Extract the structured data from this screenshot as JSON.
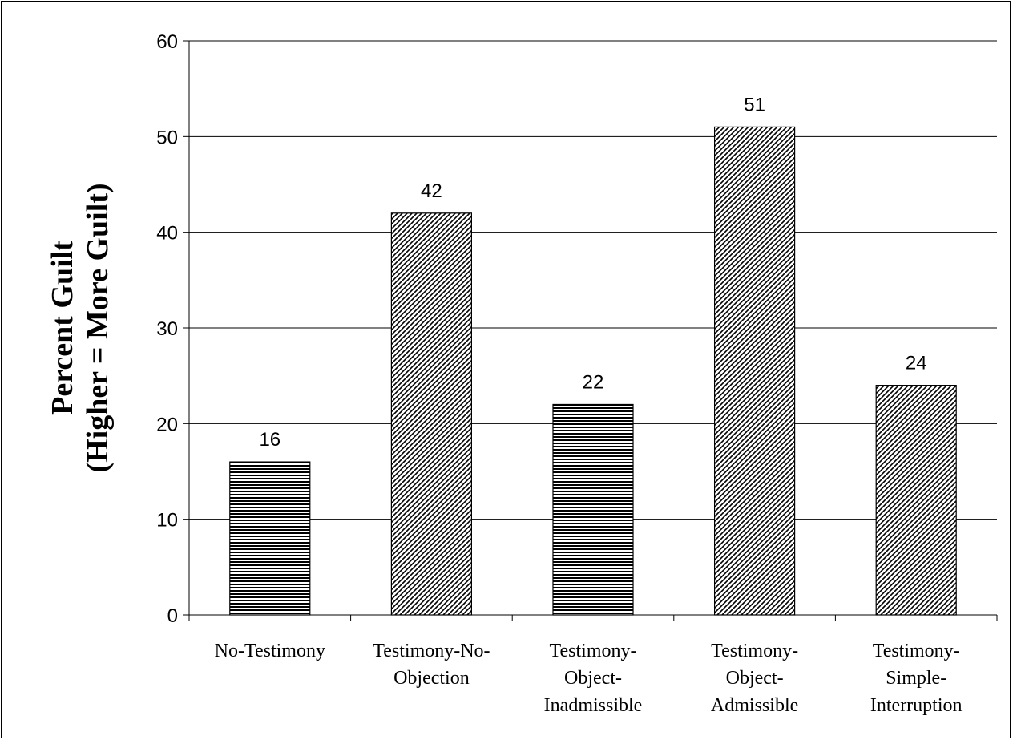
{
  "chart_data": {
    "type": "bar",
    "categories": [
      "No-Testimony",
      "Testimony-No-Objection",
      "Testimony-Object-Inadmissible",
      "Testimony-Object-Admissible",
      "Testimony-Simple-Interruption"
    ],
    "category_label_lines": [
      [
        "No-Testimony"
      ],
      [
        "Testimony-No-",
        "Objection"
      ],
      [
        "Testimony-",
        "Object-",
        "Inadmissible"
      ],
      [
        "Testimony-",
        "Object-",
        "Admissible"
      ],
      [
        "Testimony-",
        "Simple-",
        "Interruption"
      ]
    ],
    "values": [
      16,
      42,
      22,
      51,
      24
    ],
    "data_labels": [
      "16",
      "42",
      "22",
      "51",
      "24"
    ],
    "bar_patterns": [
      "horizontal-stripes",
      "diagonal-hatch",
      "horizontal-stripes",
      "diagonal-hatch",
      "diagonal-hatch"
    ],
    "ylabel_lines": [
      "Percent Guilt",
      "(Higher = More Guilt)"
    ],
    "xlabel": "",
    "ylim": [
      0,
      60
    ],
    "yticks": [
      0,
      10,
      20,
      30,
      40,
      50,
      60
    ],
    "ytick_labels": [
      "0",
      "10",
      "20",
      "30",
      "40",
      "50",
      "60"
    ],
    "grid": true,
    "legend": "none",
    "colors": {
      "bar_fill": "#ffffff",
      "pattern": "#000000",
      "grid": "#000000"
    }
  }
}
